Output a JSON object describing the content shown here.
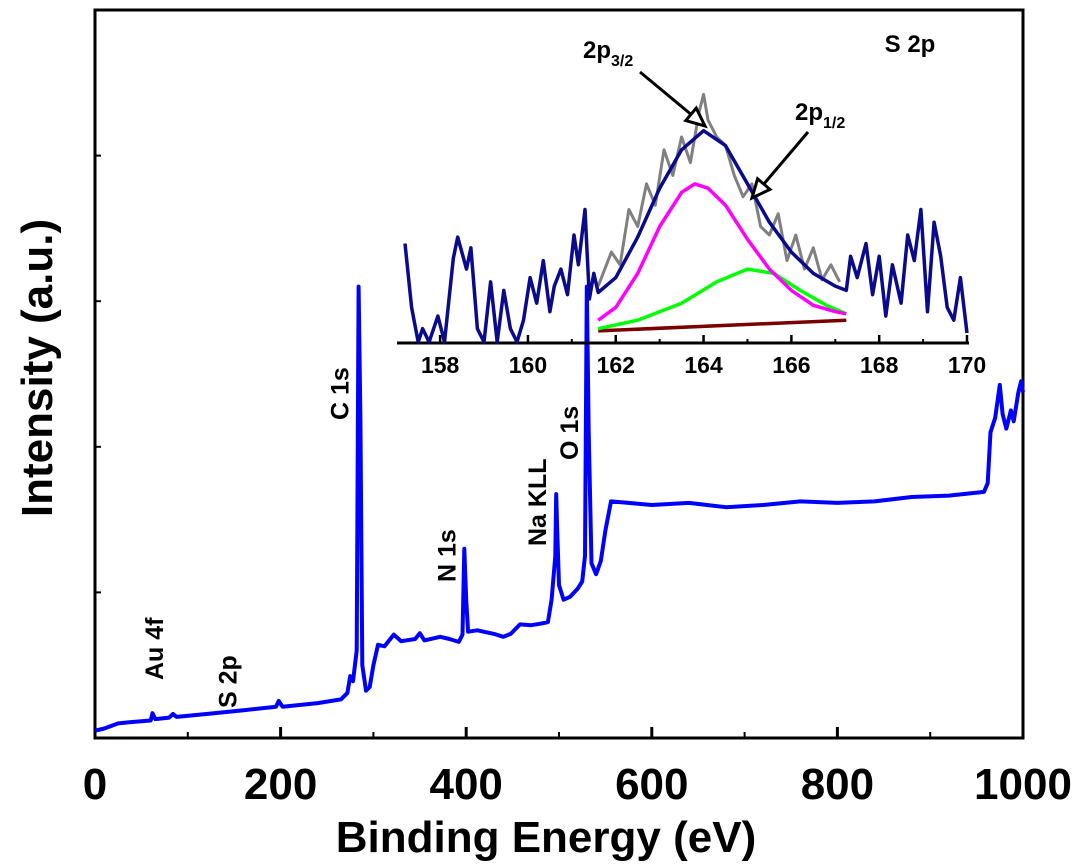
{
  "chart_data": [
    {
      "type": "line",
      "id": "survey",
      "xlabel": "Binding Energy (eV)",
      "ylabel": "Intensity (a.u.)",
      "xlim": [
        0,
        1000
      ],
      "ylim": [
        0,
        100
      ],
      "xticks": [
        0,
        200,
        400,
        600,
        800,
        1000
      ],
      "xtick_labels": [
        "0",
        "200",
        "400",
        "600",
        "800",
        "1000"
      ],
      "y_tick_labels_shown": false,
      "grid": false,
      "series": [
        {
          "color": "#0000ff",
          "points": [
            [
              0,
              1
            ],
            [
              10,
              1.3
            ],
            [
              25,
              2
            ],
            [
              40,
              2.2
            ],
            [
              60,
              2.4
            ],
            [
              62,
              3.4
            ],
            [
              65,
              2.6
            ],
            [
              80,
              2.8
            ],
            [
              84,
              3.3
            ],
            [
              88,
              2.9
            ],
            [
              120,
              3.3
            ],
            [
              160,
              3.8
            ],
            [
              195,
              4.3
            ],
            [
              198,
              5.1
            ],
            [
              202,
              4.3
            ],
            [
              240,
              4.8
            ],
            [
              265,
              5.3
            ],
            [
              272,
              6.2
            ],
            [
              275,
              8.5
            ],
            [
              278,
              7.8
            ],
            [
              282,
              12
            ],
            [
              284,
              62
            ],
            [
              286,
              44
            ],
            [
              288,
              10
            ],
            [
              292,
              6.5
            ],
            [
              296,
              7
            ],
            [
              300,
              10
            ],
            [
              305,
              12.8
            ],
            [
              312,
              12.6
            ],
            [
              322,
              14.2
            ],
            [
              330,
              13.3
            ],
            [
              345,
              13.6
            ],
            [
              350,
              14.4
            ],
            [
              355,
              13.4
            ],
            [
              372,
              13.9
            ],
            [
              382,
              13.6
            ],
            [
              392,
              13.2
            ],
            [
              396,
              14.2
            ],
            [
              398,
              26
            ],
            [
              400,
              19
            ],
            [
              402,
              14.6
            ],
            [
              412,
              14.8
            ],
            [
              430,
              14.3
            ],
            [
              440,
              13.9
            ],
            [
              448,
              14.3
            ],
            [
              458,
              15.6
            ],
            [
              470,
              15.5
            ],
            [
              480,
              15.7
            ],
            [
              488,
              15.9
            ],
            [
              492,
              19
            ],
            [
              496,
              25
            ],
            [
              497,
              33.5
            ],
            [
              498,
              29
            ],
            [
              500,
              21
            ],
            [
              505,
              19
            ],
            [
              512,
              19.4
            ],
            [
              520,
              20.5
            ],
            [
              525,
              21.5
            ],
            [
              528,
              25
            ],
            [
              530,
              62
            ],
            [
              532,
              42
            ],
            [
              535,
              24
            ],
            [
              540,
              22.5
            ],
            [
              545,
              24.3
            ],
            [
              550,
              28.5
            ],
            [
              556,
              32.5
            ],
            [
              575,
              32.3
            ],
            [
              600,
              32
            ],
            [
              640,
              32.3
            ],
            [
              680,
              31.7
            ],
            [
              720,
              32
            ],
            [
              760,
              32.5
            ],
            [
              800,
              32.3
            ],
            [
              840,
              32.5
            ],
            [
              880,
              33.1
            ],
            [
              920,
              33.3
            ],
            [
              958,
              33.8
            ],
            [
              962,
              35
            ],
            [
              965,
              42
            ],
            [
              970,
              44
            ],
            [
              975,
              48.5
            ],
            [
              978,
              44.5
            ],
            [
              982,
              42.5
            ],
            [
              987,
              45
            ],
            [
              990,
              43.5
            ],
            [
              995,
              47.5
            ],
            [
              998,
              49
            ],
            [
              1000,
              47.5
            ]
          ]
        }
      ],
      "annotations": [
        {
          "label": "Au 4f",
          "x": 84
        },
        {
          "label": "S 2p",
          "x": 163
        },
        {
          "label": "C 1s",
          "x": 284
        },
        {
          "label": "N 1s",
          "x": 399
        },
        {
          "label": "Na KLL",
          "x": 497
        },
        {
          "label": "O 1s",
          "x": 531
        }
      ]
    },
    {
      "type": "line",
      "id": "inset",
      "title": "S 2p",
      "xlim": [
        157.2,
        170
      ],
      "ylim": [
        0,
        100
      ],
      "xticks": [
        158,
        160,
        162,
        164,
        166,
        168,
        170
      ],
      "xtick_labels": [
        "158",
        "160",
        "162",
        "164",
        "166",
        "168",
        "170"
      ],
      "grid": false,
      "series": [
        {
          "role": "raw-data",
          "color": "#808080",
          "points": [
            [
              161.6,
              22
            ],
            [
              161.9,
              38
            ],
            [
              162.1,
              32
            ],
            [
              162.3,
              58
            ],
            [
              162.5,
              50
            ],
            [
              162.7,
              70
            ],
            [
              162.9,
              60
            ],
            [
              163.1,
              86
            ],
            [
              163.3,
              74
            ],
            [
              163.5,
              92
            ],
            [
              163.7,
              80
            ],
            [
              163.9,
              104
            ],
            [
              164.0,
              112
            ],
            [
              164.1,
              100
            ],
            [
              164.3,
              92
            ],
            [
              164.5,
              88
            ],
            [
              164.7,
              74
            ],
            [
              164.9,
              64
            ],
            [
              165.1,
              70
            ],
            [
              165.3,
              50
            ],
            [
              165.5,
              46
            ],
            [
              165.7,
              56
            ],
            [
              165.9,
              34
            ],
            [
              166.1,
              46
            ],
            [
              166.3,
              30
            ],
            [
              166.5,
              40
            ],
            [
              166.7,
              25
            ],
            [
              166.9,
              32
            ],
            [
              167.1,
              24
            ]
          ]
        },
        {
          "role": "envelope",
          "color": "#0a0a8c",
          "points": [
            [
              157.2,
              42
            ],
            [
              157.35,
              12
            ],
            [
              157.5,
              -10
            ],
            [
              157.6,
              2
            ],
            [
              157.75,
              -12
            ],
            [
              157.95,
              8
            ],
            [
              158.1,
              -8
            ],
            [
              158.3,
              35
            ],
            [
              158.4,
              45
            ],
            [
              158.6,
              30
            ],
            [
              158.7,
              40
            ],
            [
              158.85,
              2
            ],
            [
              159.0,
              -14
            ],
            [
              159.15,
              24
            ],
            [
              159.3,
              -12
            ],
            [
              159.45,
              20
            ],
            [
              159.6,
              2
            ],
            [
              159.75,
              -8
            ],
            [
              159.9,
              6
            ],
            [
              160.05,
              26
            ],
            [
              160.2,
              14
            ],
            [
              160.35,
              34
            ],
            [
              160.5,
              10
            ],
            [
              160.6,
              22
            ],
            [
              160.75,
              30
            ],
            [
              160.9,
              18
            ],
            [
              161.05,
              46
            ],
            [
              161.15,
              32
            ],
            [
              161.3,
              58
            ],
            [
              161.4,
              16
            ],
            [
              161.5,
              28
            ],
            [
              161.6,
              19
            ],
            [
              162.0,
              26
            ],
            [
              162.5,
              45
            ],
            [
              163.0,
              68
            ],
            [
              163.5,
              86
            ],
            [
              164.0,
              95
            ],
            [
              164.5,
              88
            ],
            [
              165.0,
              70
            ],
            [
              165.5,
              52
            ],
            [
              166.0,
              38
            ],
            [
              166.5,
              28
            ],
            [
              167.0,
              22
            ],
            [
              167.25,
              20
            ],
            [
              167.35,
              36
            ],
            [
              167.5,
              26
            ],
            [
              167.7,
              42
            ],
            [
              167.85,
              18
            ],
            [
              168.0,
              36
            ],
            [
              168.15,
              8
            ],
            [
              168.3,
              32
            ],
            [
              168.5,
              14
            ],
            [
              168.65,
              46
            ],
            [
              168.8,
              34
            ],
            [
              168.95,
              58
            ],
            [
              169.1,
              10
            ],
            [
              169.25,
              52
            ],
            [
              169.4,
              36
            ],
            [
              169.55,
              12
            ],
            [
              169.7,
              6
            ],
            [
              169.85,
              26
            ],
            [
              170,
              0
            ]
          ]
        },
        {
          "role": "peak-2p3/2",
          "color": "#ff00ff",
          "points": [
            [
              161.6,
              6
            ],
            [
              162.0,
              12
            ],
            [
              162.5,
              28
            ],
            [
              163.0,
              50
            ],
            [
              163.5,
              66
            ],
            [
              163.8,
              70
            ],
            [
              164.1,
              68
            ],
            [
              164.5,
              60
            ],
            [
              165.0,
              44
            ],
            [
              165.5,
              30
            ],
            [
              166.0,
              20
            ],
            [
              166.5,
              13
            ],
            [
              167.0,
              10
            ],
            [
              167.25,
              9
            ]
          ]
        },
        {
          "role": "peak-2p1/2",
          "color": "#00ff00",
          "points": [
            [
              161.6,
              2
            ],
            [
              162.5,
              6
            ],
            [
              163.5,
              14
            ],
            [
              164.3,
              24
            ],
            [
              165.0,
              30
            ],
            [
              165.6,
              28
            ],
            [
              166.2,
              20
            ],
            [
              166.8,
              13
            ],
            [
              167.25,
              9
            ]
          ]
        },
        {
          "role": "background",
          "color": "#7a0000",
          "points": [
            [
              161.6,
              1
            ],
            [
              167.25,
              6
            ]
          ]
        }
      ],
      "annotations": [
        {
          "label": "2p",
          "sub": "3/2"
        },
        {
          "label": "2p",
          "sub": "1/2"
        }
      ]
    }
  ]
}
